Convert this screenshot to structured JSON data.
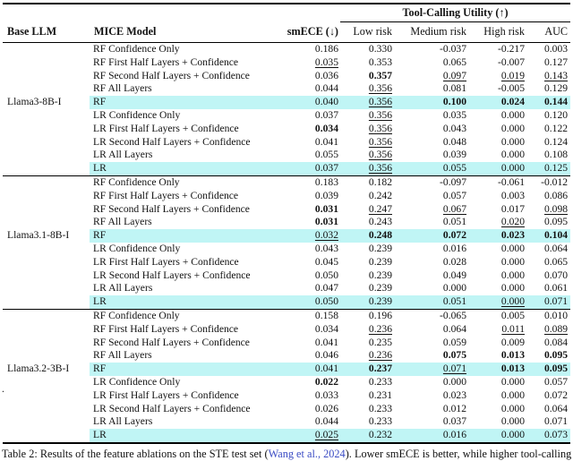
{
  "table": {
    "header_group": "Tool-Calling Utility (↑)",
    "columns": {
      "base_llm": "Base LLM",
      "mice_model": "MICE Model",
      "smece": "smECE (↓)",
      "low": "Low risk",
      "medium": "Medium risk",
      "high": "High risk",
      "auc": "AUC"
    },
    "groups": [
      {
        "base_llm": "Llama3-8B-I",
        "rows": [
          {
            "model": "RF Confidence Only",
            "highlight": false,
            "cells": [
              {
                "t": "0.186"
              },
              {
                "t": "0.330"
              },
              {
                "t": "-0.037"
              },
              {
                "t": "-0.217"
              },
              {
                "t": "0.003"
              }
            ]
          },
          {
            "model": "RF First Half Layers + Confidence",
            "highlight": false,
            "cells": [
              {
                "t": "0.035",
                "u": true
              },
              {
                "t": "0.353"
              },
              {
                "t": "0.065"
              },
              {
                "t": "-0.007"
              },
              {
                "t": "0.127"
              }
            ]
          },
          {
            "model": "RF Second Half Layers + Confidence",
            "highlight": false,
            "cells": [
              {
                "t": "0.036"
              },
              {
                "t": "0.357",
                "b": true
              },
              {
                "t": "0.097",
                "u": true
              },
              {
                "t": "0.019",
                "u": true
              },
              {
                "t": "0.143",
                "u": true
              }
            ]
          },
          {
            "model": "RF All Layers",
            "highlight": false,
            "cells": [
              {
                "t": "0.044"
              },
              {
                "t": "0.356",
                "u": true
              },
              {
                "t": "0.081"
              },
              {
                "t": "-0.005"
              },
              {
                "t": "0.129"
              }
            ]
          },
          {
            "model": "RF",
            "highlight": true,
            "cells": [
              {
                "t": "0.040"
              },
              {
                "t": "0.356",
                "u": true
              },
              {
                "t": "0.100",
                "b": true
              },
              {
                "t": "0.024",
                "b": true
              },
              {
                "t": "0.144",
                "b": true
              }
            ]
          },
          {
            "model": "LR Confidence Only",
            "highlight": false,
            "cells": [
              {
                "t": "0.037"
              },
              {
                "t": "0.356",
                "u": true
              },
              {
                "t": "0.035"
              },
              {
                "t": "0.000"
              },
              {
                "t": "0.120"
              }
            ]
          },
          {
            "model": "LR First Half Layers + Confidence",
            "highlight": false,
            "cells": [
              {
                "t": "0.034",
                "b": true
              },
              {
                "t": "0.356",
                "u": true
              },
              {
                "t": "0.043"
              },
              {
                "t": "0.000"
              },
              {
                "t": "0.122"
              }
            ]
          },
          {
            "model": "LR Second Half Layers + Confidence",
            "highlight": false,
            "cells": [
              {
                "t": "0.041"
              },
              {
                "t": "0.356",
                "u": true
              },
              {
                "t": "0.048"
              },
              {
                "t": "0.000"
              },
              {
                "t": "0.124"
              }
            ]
          },
          {
            "model": "LR All Layers",
            "highlight": false,
            "cells": [
              {
                "t": "0.055"
              },
              {
                "t": "0.356",
                "u": true
              },
              {
                "t": "0.039"
              },
              {
                "t": "0.000"
              },
              {
                "t": "0.108"
              }
            ]
          },
          {
            "model": "LR",
            "highlight": true,
            "cells": [
              {
                "t": "0.037"
              },
              {
                "t": "0.356",
                "u": true
              },
              {
                "t": "0.055"
              },
              {
                "t": "0.000"
              },
              {
                "t": "0.125"
              }
            ]
          }
        ]
      },
      {
        "base_llm": "Llama3.1-8B-I",
        "rows": [
          {
            "model": "RF Confidence Only",
            "highlight": false,
            "cells": [
              {
                "t": "0.183"
              },
              {
                "t": "0.182"
              },
              {
                "t": "-0.097"
              },
              {
                "t": "-0.061"
              },
              {
                "t": "-0.012"
              }
            ]
          },
          {
            "model": "RF First Half Layers + Confidence",
            "highlight": false,
            "cells": [
              {
                "t": "0.039"
              },
              {
                "t": "0.242"
              },
              {
                "t": "0.057"
              },
              {
                "t": "0.003"
              },
              {
                "t": "0.086"
              }
            ]
          },
          {
            "model": "RF Second Half Layers + Confidence",
            "highlight": false,
            "cells": [
              {
                "t": "0.031",
                "b": true
              },
              {
                "t": "0.247",
                "u": true
              },
              {
                "t": "0.067",
                "u": true
              },
              {
                "t": "0.017"
              },
              {
                "t": "0.098",
                "u": true
              }
            ]
          },
          {
            "model": "RF All Layers",
            "highlight": false,
            "cells": [
              {
                "t": "0.031",
                "b": true
              },
              {
                "t": "0.243"
              },
              {
                "t": "0.051"
              },
              {
                "t": "0.020",
                "u": true
              },
              {
                "t": "0.095"
              }
            ]
          },
          {
            "model": "RF",
            "highlight": true,
            "cells": [
              {
                "t": "0.032",
                "u": true
              },
              {
                "t": "0.248",
                "b": true
              },
              {
                "t": "0.072",
                "b": true
              },
              {
                "t": "0.023",
                "b": true
              },
              {
                "t": "0.104",
                "b": true
              }
            ]
          },
          {
            "model": "LR Confidence Only",
            "highlight": false,
            "cells": [
              {
                "t": "0.043"
              },
              {
                "t": "0.239"
              },
              {
                "t": "0.016"
              },
              {
                "t": "0.000"
              },
              {
                "t": "0.064"
              }
            ]
          },
          {
            "model": "LR First Half Layers + Confidence",
            "highlight": false,
            "cells": [
              {
                "t": "0.045"
              },
              {
                "t": "0.239"
              },
              {
                "t": "0.028"
              },
              {
                "t": "0.000"
              },
              {
                "t": "0.065"
              }
            ]
          },
          {
            "model": "LR Second Half Layers + Confidence",
            "highlight": false,
            "cells": [
              {
                "t": "0.050"
              },
              {
                "t": "0.239"
              },
              {
                "t": "0.049"
              },
              {
                "t": "0.000"
              },
              {
                "t": "0.070"
              }
            ]
          },
          {
            "model": "LR All Layers",
            "highlight": false,
            "cells": [
              {
                "t": "0.047"
              },
              {
                "t": "0.239"
              },
              {
                "t": "0.000"
              },
              {
                "t": "0.000"
              },
              {
                "t": "0.061"
              }
            ]
          },
          {
            "model": "LR",
            "highlight": true,
            "cells": [
              {
                "t": "0.050"
              },
              {
                "t": "0.239"
              },
              {
                "t": "0.051"
              },
              {
                "t": "0.000",
                "u": true
              },
              {
                "t": "0.071"
              }
            ]
          }
        ]
      },
      {
        "base_llm": "Llama3.2-3B-I",
        "rows": [
          {
            "model": "RF Confidence Only",
            "highlight": false,
            "cells": [
              {
                "t": "0.158"
              },
              {
                "t": "0.196"
              },
              {
                "t": "-0.065"
              },
              {
                "t": "0.005"
              },
              {
                "t": "0.010"
              }
            ]
          },
          {
            "model": "RF First Half Layers + Confidence",
            "highlight": false,
            "cells": [
              {
                "t": "0.034"
              },
              {
                "t": "0.236",
                "u": true
              },
              {
                "t": "0.064"
              },
              {
                "t": "0.011",
                "u": true
              },
              {
                "t": "0.089",
                "u": true
              }
            ]
          },
          {
            "model": "RF Second Half Layers + Confidence",
            "highlight": false,
            "cells": [
              {
                "t": "0.041"
              },
              {
                "t": "0.235"
              },
              {
                "t": "0.059"
              },
              {
                "t": "0.009"
              },
              {
                "t": "0.084"
              }
            ]
          },
          {
            "model": "RF All Layers",
            "highlight": false,
            "cells": [
              {
                "t": "0.046"
              },
              {
                "t": "0.236",
                "u": true
              },
              {
                "t": "0.075",
                "b": true
              },
              {
                "t": "0.013",
                "b": true
              },
              {
                "t": "0.095",
                "b": true
              }
            ]
          },
          {
            "model": "RF",
            "highlight": true,
            "cells": [
              {
                "t": "0.041"
              },
              {
                "t": "0.237",
                "b": true
              },
              {
                "t": "0.071",
                "u": true
              },
              {
                "t": "0.013",
                "b": true
              },
              {
                "t": "0.095",
                "b": true
              }
            ]
          },
          {
            "model": "LR Confidence Only",
            "highlight": false,
            "cells": [
              {
                "t": "0.022",
                "b": true
              },
              {
                "t": "0.233"
              },
              {
                "t": "0.000"
              },
              {
                "t": "0.000"
              },
              {
                "t": "0.057"
              }
            ]
          },
          {
            "model": "LR First Half Layers + Confidence",
            "highlight": false,
            "cells": [
              {
                "t": "0.033"
              },
              {
                "t": "0.231"
              },
              {
                "t": "0.023"
              },
              {
                "t": "0.000"
              },
              {
                "t": "0.072"
              }
            ]
          },
          {
            "model": "LR Second Half Layers + Confidence",
            "highlight": false,
            "cells": [
              {
                "t": "0.026"
              },
              {
                "t": "0.233"
              },
              {
                "t": "0.012"
              },
              {
                "t": "0.000"
              },
              {
                "t": "0.064"
              }
            ]
          },
          {
            "model": "LR All Layers",
            "highlight": false,
            "cells": [
              {
                "t": "0.044"
              },
              {
                "t": "0.233"
              },
              {
                "t": "0.037"
              },
              {
                "t": "0.000"
              },
              {
                "t": "0.071"
              }
            ]
          },
          {
            "model": "LR",
            "highlight": true,
            "cells": [
              {
                "t": "0.025",
                "u": true
              },
              {
                "t": "0.232"
              },
              {
                "t": "0.016"
              },
              {
                "t": "0.000"
              },
              {
                "t": "0.073"
              }
            ]
          }
        ]
      }
    ]
  },
  "caption": {
    "prefix": "Table 2: Results of the feature ablations on the STE test set (",
    "citation": "Wang et al., 2024",
    "suffix": "). Lower smECE is better, while higher tool-calling utility is better."
  },
  "stray_mark": ".",
  "colors": {
    "highlight_row": "#c0f5f5",
    "citation_blue": "#3b4cc4",
    "rule_black": "#000000"
  }
}
